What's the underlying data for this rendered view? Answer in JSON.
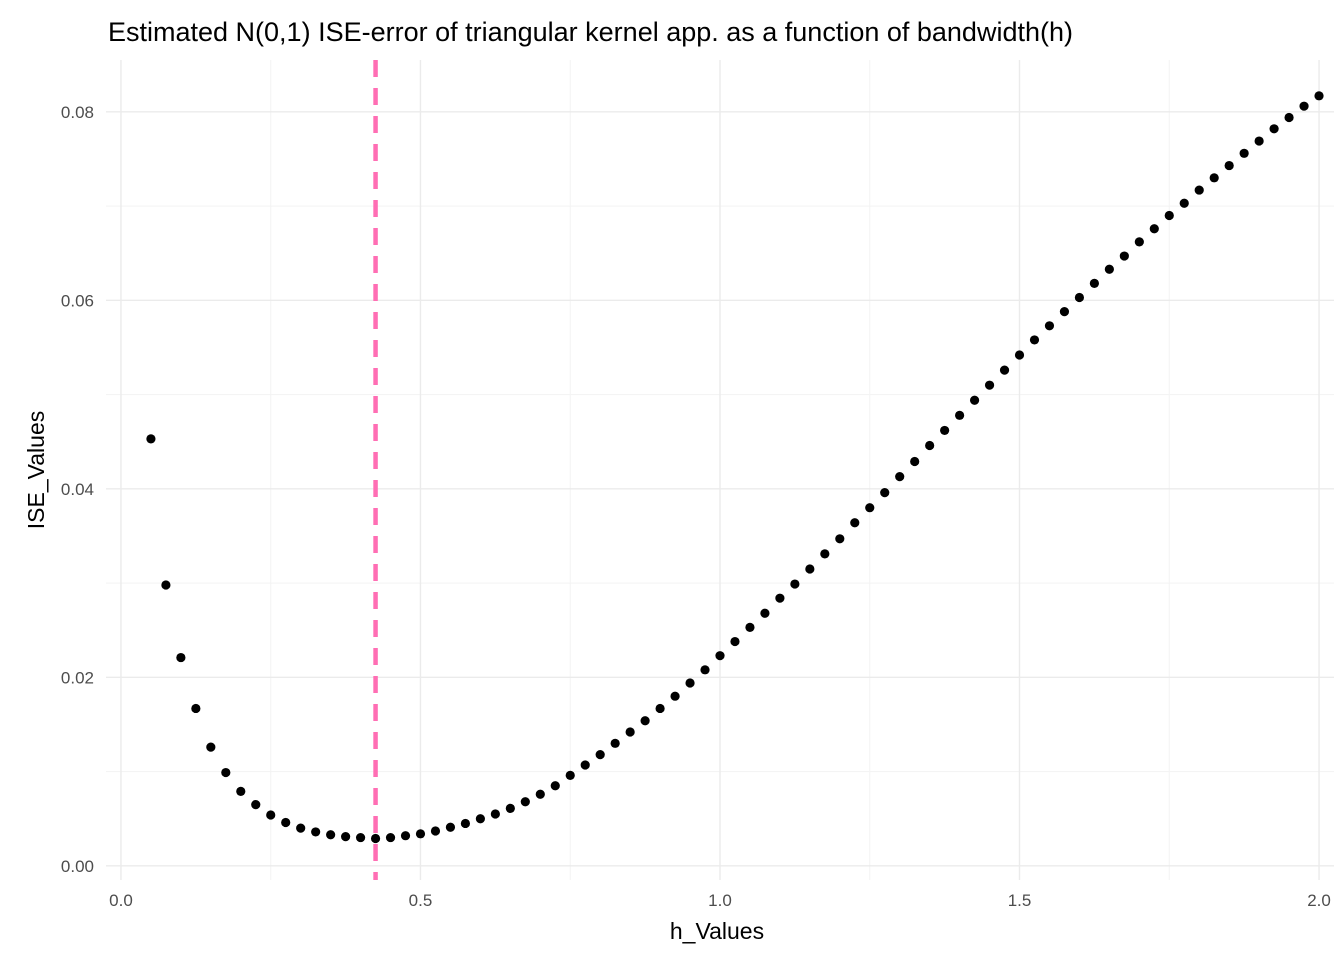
{
  "chart_data": {
    "type": "scatter",
    "title": "Estimated N(0,1) ISE-error of triangular kernel app. as a function of bandwidth(h)",
    "xlabel": "h_Values",
    "ylabel": "ISE_Values",
    "xlim": [
      -0.025,
      2.025
    ],
    "ylim": [
      -0.0015,
      0.0855
    ],
    "x_ticks": [
      0.0,
      0.5,
      1.0,
      1.5,
      2.0
    ],
    "x_tick_labels": [
      "0.0",
      "0.5",
      "1.0",
      "1.5",
      "2.0"
    ],
    "y_ticks": [
      0.0,
      0.02,
      0.04,
      0.06,
      0.08
    ],
    "y_tick_labels": [
      "0.00",
      "0.02",
      "0.04",
      "0.06",
      "0.08"
    ],
    "grid": true,
    "point_color": "#000000",
    "vline": {
      "x": 0.425,
      "color": "#ff6eb4",
      "style": "dashed"
    },
    "x": [
      0.05,
      0.075,
      0.1,
      0.125,
      0.15,
      0.175,
      0.2,
      0.225,
      0.25,
      0.275,
      0.3,
      0.325,
      0.35,
      0.375,
      0.4,
      0.425,
      0.45,
      0.475,
      0.5,
      0.525,
      0.55,
      0.575,
      0.6,
      0.625,
      0.65,
      0.675,
      0.7,
      0.725,
      0.75,
      0.775,
      0.8,
      0.825,
      0.85,
      0.875,
      0.9,
      0.925,
      0.95,
      0.975,
      1.0,
      1.025,
      1.05,
      1.075,
      1.1,
      1.125,
      1.15,
      1.175,
      1.2,
      1.225,
      1.25,
      1.275,
      1.3,
      1.325,
      1.35,
      1.375,
      1.4,
      1.425,
      1.45,
      1.475,
      1.5,
      1.525,
      1.55,
      1.575,
      1.6,
      1.625,
      1.65,
      1.675,
      1.7,
      1.725,
      1.75,
      1.775,
      1.8,
      1.825,
      1.85,
      1.875,
      1.9,
      1.925,
      1.95,
      1.975,
      2.0
    ],
    "y": [
      0.0453,
      0.0298,
      0.0221,
      0.0167,
      0.0126,
      0.0099,
      0.0079,
      0.0065,
      0.0054,
      0.0046,
      0.004,
      0.0036,
      0.0033,
      0.0031,
      0.003,
      0.0029,
      0.003,
      0.0032,
      0.0034,
      0.0037,
      0.0041,
      0.0045,
      0.005,
      0.0055,
      0.0061,
      0.0068,
      0.0076,
      0.0085,
      0.0096,
      0.0107,
      0.0118,
      0.013,
      0.0142,
      0.0154,
      0.0167,
      0.018,
      0.0194,
      0.0208,
      0.0223,
      0.0238,
      0.0253,
      0.0268,
      0.0284,
      0.0299,
      0.0315,
      0.0331,
      0.0347,
      0.0364,
      0.038,
      0.0396,
      0.0413,
      0.0429,
      0.0446,
      0.0462,
      0.0478,
      0.0494,
      0.051,
      0.0526,
      0.0542,
      0.0558,
      0.0573,
      0.0588,
      0.0603,
      0.0618,
      0.0633,
      0.0647,
      0.0662,
      0.0676,
      0.069,
      0.0703,
      0.0717,
      0.073,
      0.0743,
      0.0756,
      0.0769,
      0.0782,
      0.0794,
      0.0806,
      0.0817
    ]
  }
}
